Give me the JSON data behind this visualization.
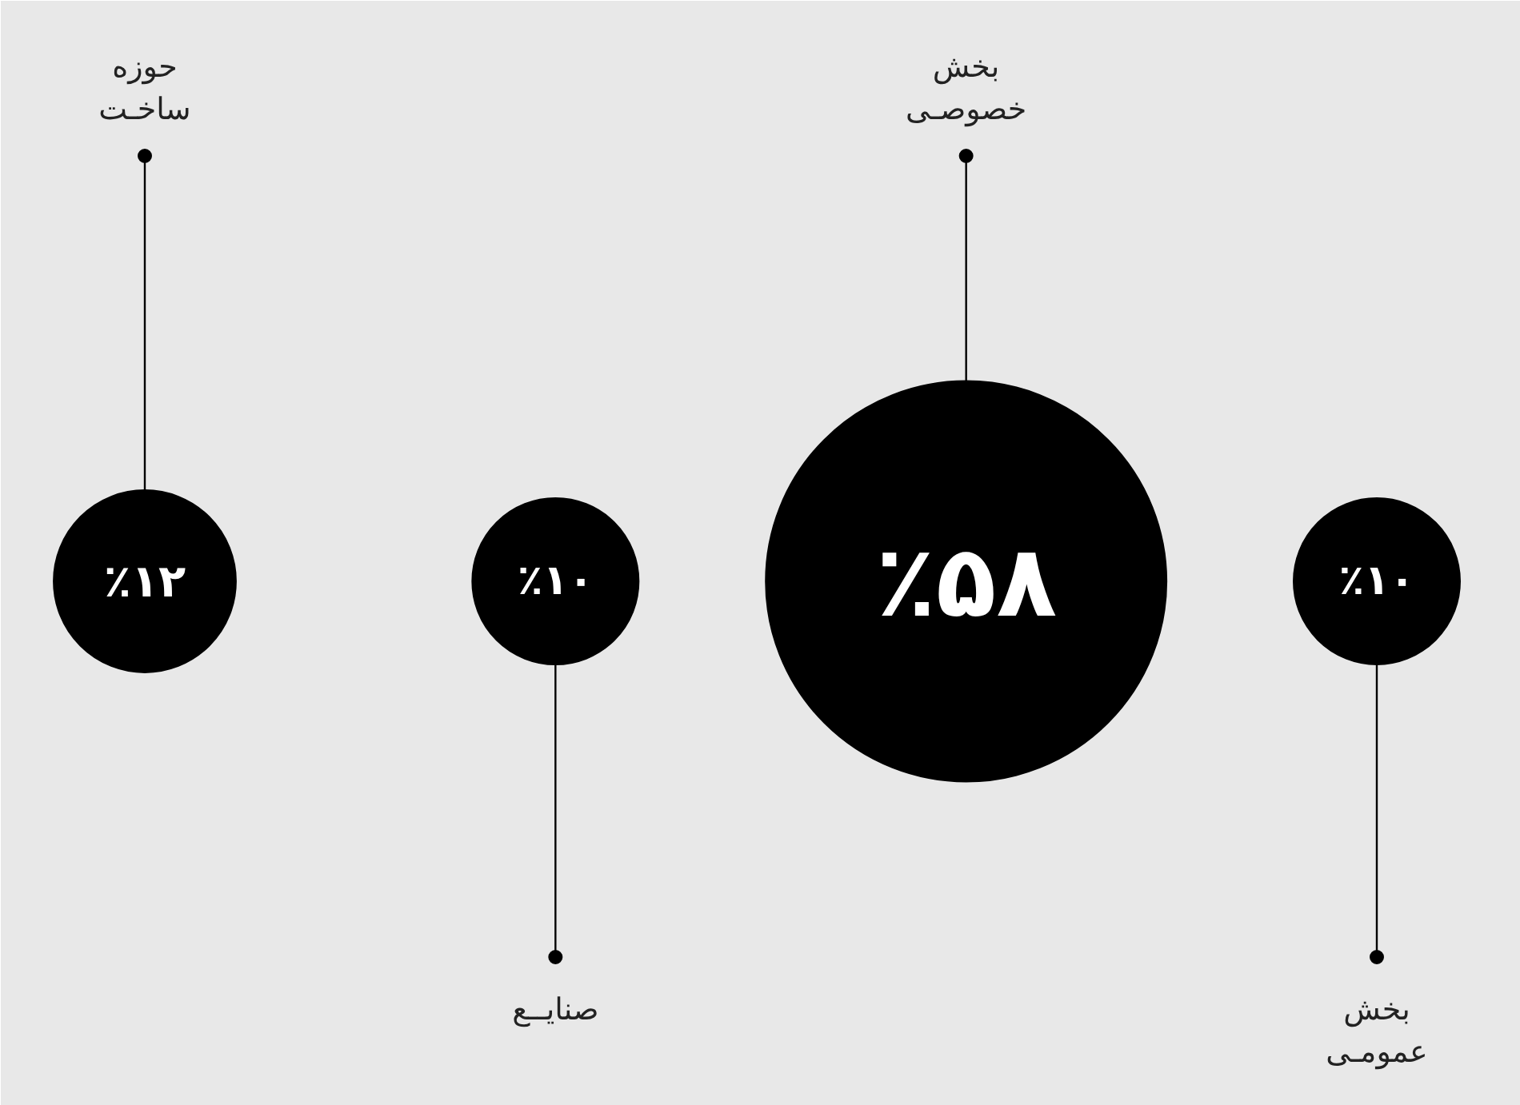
{
  "chart_data": {
    "type": "other",
    "categories": [
      "حوزه\nساخـت",
      "صنایــع",
      "بخش\nخصوصـی",
      "بخش\nعمومـی"
    ],
    "values": [
      12,
      10,
      58,
      10
    ],
    "value_labels": [
      "٪۱۲",
      "٪۱۰",
      "٪۵۸",
      "٪۱۰"
    ],
    "color": "#000000"
  }
}
